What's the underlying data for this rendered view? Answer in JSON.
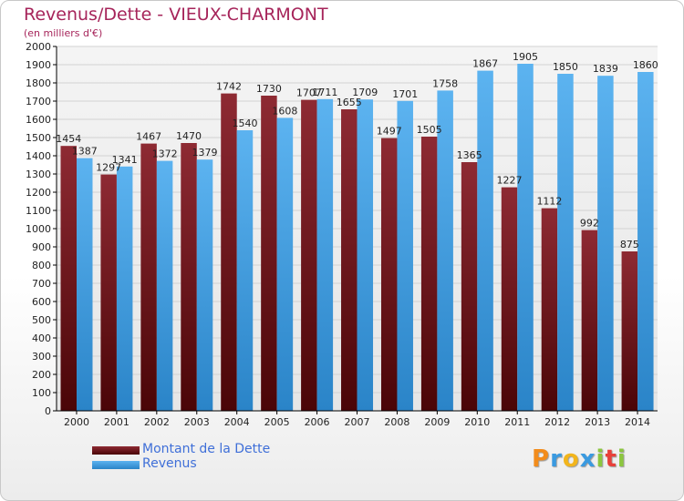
{
  "chart_data": {
    "type": "bar",
    "title": "Revenus/Dette - VIEUX-CHARMONT",
    "subtitle": "(en milliers d'€)",
    "xlabel": "",
    "ylabel": "",
    "ylim": [
      0,
      2000
    ],
    "ytick_step": 100,
    "grid": true,
    "legend_position": "bottom-left",
    "categories": [
      "2000",
      "2001",
      "2002",
      "2003",
      "2004",
      "2005",
      "2006",
      "2007",
      "2008",
      "2009",
      "2010",
      "2011",
      "2012",
      "2013",
      "2014"
    ],
    "series": [
      {
        "name": "Montant de la Dette",
        "color": "#7a1c24",
        "values": [
          1454,
          1297,
          1467,
          1470,
          1742,
          1730,
          1707,
          1655,
          1497,
          1505,
          1365,
          1227,
          1112,
          992,
          875
        ],
        "labels": [
          "1454",
          "1297",
          "1467",
          "1470",
          "1742",
          "1730",
          "1707",
          "1655",
          "1497",
          "1505",
          "1365",
          "1227",
          "1112",
          "992",
          "875"
        ]
      },
      {
        "name": "Revenus",
        "color": "#4aa3e6",
        "values": [
          1387,
          1341,
          1372,
          1379,
          1540,
          1608,
          1711,
          1709,
          1701,
          1758,
          1867,
          1905,
          1850,
          1839,
          1860
        ],
        "labels": [
          "1387",
          "1341",
          "1372",
          "1379",
          "1540",
          "1608",
          "1711",
          "1709",
          "1701",
          "1758",
          "1867",
          "1905",
          "1850",
          "1839",
          "1860"
        ]
      }
    ]
  },
  "branding": {
    "logo_text": "Proxiti",
    "logo_letters": [
      "P",
      "r",
      "o",
      "x",
      "i",
      "t",
      "i"
    ],
    "logo_colors": [
      "#f28c1c",
      "#3a9ae0",
      "#f2b51c",
      "#3a9ae0",
      "#8cc63f",
      "#e8403a",
      "#8cc63f"
    ]
  }
}
